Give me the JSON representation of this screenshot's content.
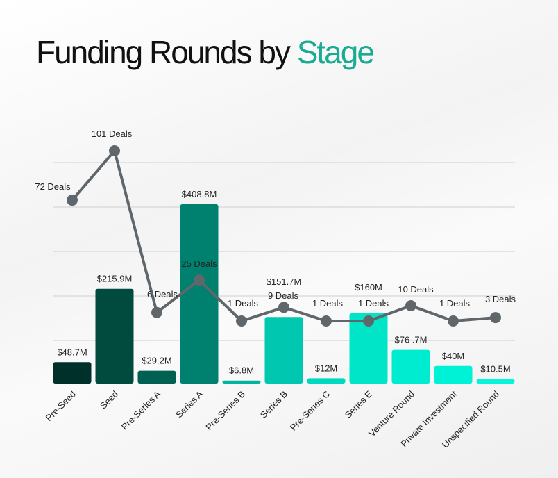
{
  "title": {
    "main": "Funding Rounds by ",
    "accent": "Stage",
    "accent_color": "#1aab94"
  },
  "chart_data": {
    "type": "bar+line",
    "title": "Funding Rounds by Stage",
    "categories": [
      "Pre-Seed",
      "Seed",
      "Pre-Series A",
      "Series A",
      "Pre-Series B",
      "Series B",
      "Pre-Series C",
      "Series E",
      "Venture Round",
      "Private Investment",
      "Unspecified Round"
    ],
    "series": [
      {
        "type": "bar",
        "values": [
          48.7,
          215.9,
          29.2,
          408.8,
          6.8,
          151.7,
          12,
          160,
          76.7,
          40,
          10.5
        ],
        "labels": [
          "$48.7M",
          "$215.9M",
          "$29.2M",
          "$408.8M",
          "$6.8M",
          "$151.7M",
          "$12M",
          "$160M",
          "$76 .7M",
          "$40M",
          "$10.5M"
        ],
        "colors": [
          "#00302a",
          "#004a3e",
          "#006052",
          "#00806e",
          "#00b49e",
          "#00c8b0",
          "#00d8bf",
          "#00e4c8",
          "#00ecd0",
          "#00f2d6",
          "#08f4da"
        ]
      },
      {
        "type": "line",
        "values": [
          72,
          101,
          6,
          25,
          1,
          9,
          1,
          1,
          10,
          1,
          3
        ],
        "labels": [
          "72 Deals",
          "101 Deals",
          "6 Deals",
          "25 Deals",
          "1 Deals",
          "9 Deals",
          "1 Deals",
          "1 Deals",
          "10 Deals",
          "1 Deals",
          "3 Deals"
        ],
        "color": "#5f676c"
      }
    ],
    "grid": true
  }
}
